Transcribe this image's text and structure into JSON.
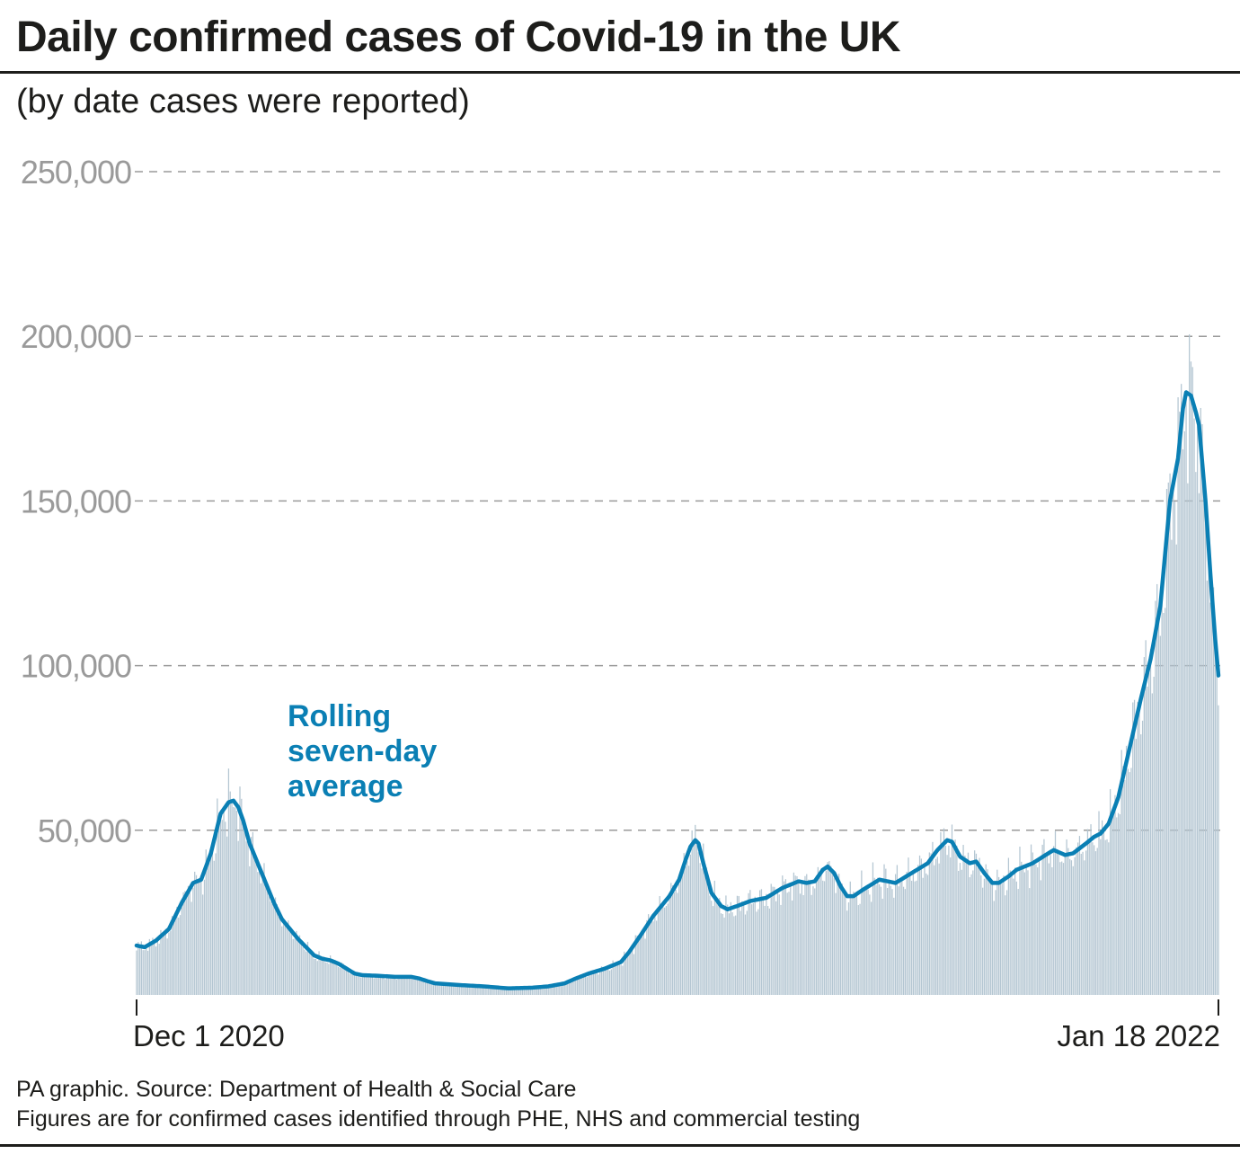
{
  "title": "Daily confirmed cases of Covid-19 in the UK",
  "subtitle": "(by date cases were reported)",
  "footer": {
    "source": "PA graphic. Source: Department of Health & Social Care",
    "note": "Figures are for confirmed cases identified through PHE, NHS and commercial testing"
  },
  "colors": {
    "average_line": "#0a7fb4",
    "bars": "#b4c6d2",
    "grid": "#9a9a9a",
    "tick_label": "#9a9a9a",
    "text": "#1d1d1b"
  },
  "chart_data": {
    "type": "bar",
    "x_start_label": "Dec 1 2020",
    "x_end_label": "Jan 18 2022",
    "ylim": [
      0,
      250000
    ],
    "yticks": [
      50000,
      100000,
      150000,
      200000,
      250000
    ],
    "ytick_labels": [
      "50,000",
      "100,000",
      "150,000",
      "200,000",
      "250,000"
    ],
    "grid": "horizontal dashed",
    "annotation": [
      "Rolling",
      "seven-day",
      "average"
    ],
    "series": [
      {
        "type": "line",
        "keypoints": [
          [
            0,
            15000
          ],
          [
            5,
            14500
          ],
          [
            12,
            16500
          ],
          [
            20,
            20000
          ],
          [
            28,
            28000
          ],
          [
            35,
            34000
          ],
          [
            40,
            35000
          ],
          [
            46,
            43000
          ],
          [
            52,
            55000
          ],
          [
            57,
            58500
          ],
          [
            60,
            59000
          ],
          [
            63,
            57000
          ],
          [
            66,
            53000
          ],
          [
            70,
            46000
          ],
          [
            75,
            40000
          ],
          [
            80,
            34000
          ],
          [
            85,
            28000
          ],
          [
            90,
            23000
          ],
          [
            95,
            20000
          ],
          [
            100,
            17000
          ],
          [
            105,
            14500
          ],
          [
            110,
            12000
          ],
          [
            115,
            11000
          ],
          [
            120,
            10500
          ],
          [
            125,
            9500
          ],
          [
            130,
            8000
          ],
          [
            135,
            6500
          ],
          [
            140,
            6000
          ],
          [
            150,
            5800
          ],
          [
            160,
            5500
          ],
          [
            170,
            5500
          ],
          [
            175,
            5000
          ],
          [
            180,
            4200
          ],
          [
            185,
            3500
          ],
          [
            200,
            3000
          ],
          [
            215,
            2600
          ],
          [
            230,
            2000
          ],
          [
            245,
            2200
          ],
          [
            255,
            2600
          ],
          [
            265,
            3500
          ],
          [
            272,
            5000
          ],
          [
            280,
            6500
          ],
          [
            290,
            8000
          ],
          [
            300,
            10000
          ],
          [
            305,
            13000
          ],
          [
            312,
            18000
          ],
          [
            320,
            24000
          ],
          [
            330,
            30000
          ],
          [
            336,
            35000
          ],
          [
            340,
            41000
          ],
          [
            343,
            45000
          ],
          [
            346,
            47000
          ],
          [
            348,
            46000
          ],
          [
            351,
            40000
          ],
          [
            356,
            31000
          ],
          [
            362,
            27000
          ],
          [
            366,
            26000
          ],
          [
            372,
            27000
          ],
          [
            380,
            28500
          ],
          [
            390,
            29500
          ],
          [
            400,
            32500
          ],
          [
            410,
            34500
          ],
          [
            415,
            34000
          ],
          [
            420,
            34500
          ],
          [
            425,
            38000
          ],
          [
            428,
            39000
          ],
          [
            432,
            37000
          ],
          [
            436,
            33000
          ],
          [
            440,
            30000
          ],
          [
            444,
            30000
          ],
          [
            450,
            32000
          ],
          [
            460,
            35000
          ],
          [
            470,
            34000
          ],
          [
            480,
            37000
          ],
          [
            490,
            40000
          ],
          [
            496,
            44000
          ],
          [
            502,
            47000
          ],
          [
            505,
            46500
          ],
          [
            510,
            42000
          ],
          [
            516,
            40000
          ],
          [
            520,
            40500
          ],
          [
            525,
            37000
          ],
          [
            530,
            34000
          ],
          [
            534,
            34000
          ],
          [
            540,
            36000
          ],
          [
            545,
            38000
          ],
          [
            555,
            40000
          ],
          [
            563,
            42500
          ],
          [
            568,
            44000
          ],
          [
            575,
            42500
          ],
          [
            580,
            43000
          ],
          [
            588,
            46000
          ],
          [
            593,
            48000
          ],
          [
            597,
            49000
          ],
          [
            602,
            52000
          ],
          [
            608,
            60000
          ],
          [
            615,
            75000
          ],
          [
            622,
            90000
          ],
          [
            628,
            102000
          ],
          [
            634,
            118000
          ],
          [
            640,
            150000
          ],
          [
            645,
            163000
          ],
          [
            648,
            178000
          ],
          [
            650,
            183000
          ],
          [
            653,
            182000
          ],
          [
            656,
            177000
          ],
          [
            658,
            173000
          ],
          [
            662,
            150000
          ],
          [
            665,
            128000
          ],
          [
            668,
            108000
          ],
          [
            670,
            97000
          ]
        ]
      }
    ]
  }
}
